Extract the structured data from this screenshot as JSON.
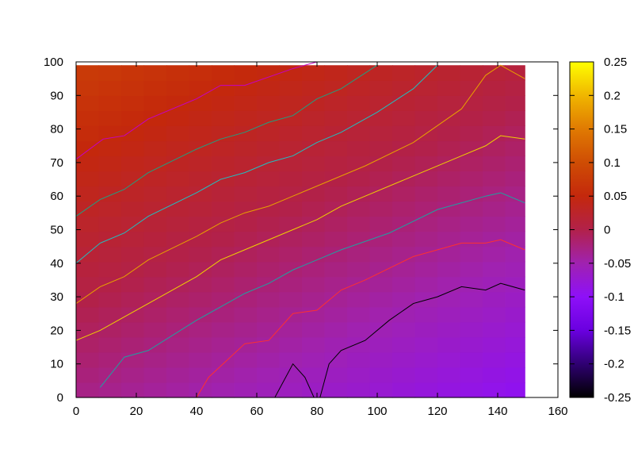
{
  "chart_data": {
    "type": "heatmap",
    "title": "",
    "xlabel": "",
    "ylabel": "",
    "xlim": [
      0,
      160
    ],
    "ylim": [
      0,
      100
    ],
    "x_ticks": [
      "0",
      "20",
      "40",
      "60",
      "80",
      "100",
      "120",
      "140",
      "160"
    ],
    "y_ticks": [
      "0",
      "10",
      "20",
      "30",
      "40",
      "50",
      "60",
      "70",
      "80",
      "90",
      "100"
    ],
    "data_extent": {
      "x": [
        0,
        149
      ],
      "y": [
        0,
        99
      ]
    },
    "colorbar": {
      "range": [
        -0.25,
        0.25
      ],
      "ticks": [
        "0.25",
        "0.2",
        "0.15",
        "0.1",
        "0.05",
        "0",
        "-0.05",
        "-0.1",
        "-0.15",
        "-0.2",
        "-0.25"
      ]
    },
    "palette": [
      "#000000",
      "#2f0072",
      "#6a00e0",
      "#8e10f8",
      "#a022b0",
      "#b2214a",
      "#c4280c",
      "#cf4d04",
      "#e07a02",
      "#f0b600",
      "#ffff00"
    ],
    "surface": {
      "description_values": "approximate field value, linear in x and y",
      "value_at_origin": -0.03,
      "slope_per_x": -0.00045,
      "slope_per_y": 0.0011
    },
    "contours": [
      {
        "level": "upper-1",
        "color": "#c400c4",
        "points": [
          [
            0,
            71
          ],
          [
            9,
            77
          ],
          [
            16,
            78
          ],
          [
            24,
            83
          ],
          [
            40,
            89
          ],
          [
            48,
            93
          ],
          [
            56,
            93
          ],
          [
            72,
            98
          ],
          [
            80,
            100
          ]
        ]
      },
      {
        "level": "upper-2",
        "color": "#20a080",
        "points": [
          [
            0,
            54
          ],
          [
            8,
            59
          ],
          [
            16,
            62
          ],
          [
            24,
            67
          ],
          [
            40,
            74
          ],
          [
            48,
            77
          ],
          [
            56,
            79
          ],
          [
            64,
            82
          ],
          [
            72,
            84
          ],
          [
            80,
            89
          ],
          [
            88,
            92
          ],
          [
            100,
            99
          ]
        ]
      },
      {
        "level": "upper-3",
        "color": "#20c0c0",
        "points": [
          [
            0,
            40
          ],
          [
            8,
            46
          ],
          [
            16,
            49
          ],
          [
            24,
            54
          ],
          [
            40,
            61
          ],
          [
            48,
            65
          ],
          [
            56,
            67
          ],
          [
            64,
            70
          ],
          [
            72,
            72
          ],
          [
            80,
            76
          ],
          [
            88,
            79
          ],
          [
            100,
            85
          ],
          [
            112,
            92
          ],
          [
            120,
            99
          ]
        ]
      },
      {
        "level": "mid-1",
        "color": "#e8a000",
        "points": [
          [
            0,
            28
          ],
          [
            8,
            33
          ],
          [
            16,
            36
          ],
          [
            24,
            41
          ],
          [
            40,
            48
          ],
          [
            48,
            52
          ],
          [
            56,
            55
          ],
          [
            64,
            57
          ],
          [
            72,
            60
          ],
          [
            80,
            63
          ],
          [
            96,
            69
          ],
          [
            112,
            76
          ],
          [
            128,
            86
          ],
          [
            136,
            96
          ],
          [
            141,
            99
          ],
          [
            149,
            95
          ]
        ]
      },
      {
        "level": "mid-2",
        "color": "#f0d000",
        "points": [
          [
            0,
            17
          ],
          [
            8,
            20
          ],
          [
            16,
            24
          ],
          [
            24,
            28
          ],
          [
            40,
            36
          ],
          [
            48,
            41
          ],
          [
            56,
            44
          ],
          [
            72,
            50
          ],
          [
            80,
            53
          ],
          [
            88,
            57
          ],
          [
            96,
            60
          ],
          [
            112,
            66
          ],
          [
            128,
            72
          ],
          [
            136,
            75
          ],
          [
            141,
            78
          ],
          [
            149,
            77
          ]
        ]
      },
      {
        "level": "low-1",
        "color": "#20a0a0",
        "points": [
          [
            8,
            3
          ],
          [
            16,
            12
          ],
          [
            24,
            14
          ],
          [
            40,
            23
          ],
          [
            56,
            31
          ],
          [
            64,
            34
          ],
          [
            72,
            38
          ],
          [
            80,
            41
          ],
          [
            88,
            44
          ],
          [
            104,
            49
          ],
          [
            120,
            56
          ],
          [
            136,
            60
          ],
          [
            141,
            61
          ],
          [
            149,
            58
          ]
        ]
      },
      {
        "level": "low-2",
        "color": "#ff3030",
        "points": [
          [
            40,
            0
          ],
          [
            44,
            6
          ],
          [
            50,
            11
          ],
          [
            56,
            16
          ],
          [
            64,
            17
          ],
          [
            72,
            25
          ],
          [
            80,
            26
          ],
          [
            88,
            32
          ],
          [
            96,
            35
          ],
          [
            112,
            42
          ],
          [
            128,
            46
          ],
          [
            136,
            46
          ],
          [
            141,
            47
          ],
          [
            149,
            44
          ]
        ]
      },
      {
        "level": "low-3",
        "color": "#000000",
        "points": [
          [
            66,
            0
          ],
          [
            72,
            10
          ],
          [
            76,
            6
          ],
          [
            79,
            0
          ]
        ]
      },
      {
        "level": "low-4",
        "color": "#000000",
        "points": [
          [
            81,
            0
          ],
          [
            84,
            10
          ],
          [
            88,
            14
          ],
          [
            96,
            17
          ],
          [
            104,
            23
          ],
          [
            112,
            28
          ],
          [
            120,
            30
          ],
          [
            128,
            33
          ],
          [
            136,
            32
          ],
          [
            141,
            34
          ],
          [
            149,
            32
          ]
        ]
      }
    ]
  }
}
